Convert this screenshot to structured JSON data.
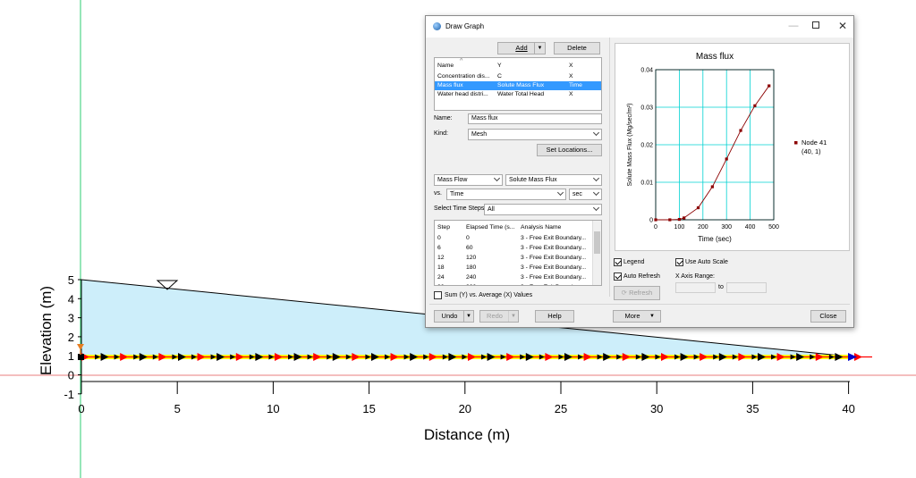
{
  "canvas": {
    "y_axis_label": "Elevation (m)",
    "x_axis_label": "Distance (m)",
    "y_ticks": [
      "5",
      "4",
      "3",
      "2",
      "1",
      "0",
      "-1"
    ],
    "x_ticks": [
      "0",
      "5",
      "10",
      "15",
      "20",
      "25",
      "30",
      "35",
      "40"
    ],
    "water_color": "#cdeefa",
    "flow_colors": [
      "#ff0000",
      "#000000",
      "#0000cc",
      "#ffff00"
    ]
  },
  "dialog": {
    "title": "Draw Graph",
    "add_label": "Add",
    "delete_label": "Delete",
    "graph_list": {
      "headers": [
        "Name",
        "Y",
        "X"
      ],
      "rows": [
        {
          "name": "Concentration dis...",
          "y": "C",
          "x": "X",
          "selected": false
        },
        {
          "name": "Mass flux",
          "y": "Solute Mass Flux",
          "x": "Time",
          "selected": true
        },
        {
          "name": "Water head distri...",
          "y": "Water Total Head",
          "x": "X",
          "selected": false
        }
      ]
    },
    "name_label": "Name:",
    "name_value": "Mass flux",
    "kind_label": "Kind:",
    "kind_value": "Mesh",
    "set_locations_label": "Set Locations...",
    "category_value": "Mass Flow",
    "quantity_value": "Solute Mass Flux",
    "vs_label": "vs.",
    "vs_value": "Time",
    "unit_value": "sec",
    "time_steps_label": "Select Time Steps:",
    "time_steps_value": "All",
    "steps_list": {
      "headers": [
        "Step",
        "Elapsed Time (s...",
        "Analysis Name"
      ],
      "rows": [
        {
          "step": "0",
          "time": "0",
          "name": "3 - Free Exit Boundary..."
        },
        {
          "step": "6",
          "time": "60",
          "name": "3 - Free Exit Boundary..."
        },
        {
          "step": "12",
          "time": "120",
          "name": "3 - Free Exit Boundary..."
        },
        {
          "step": "18",
          "time": "180",
          "name": "3 - Free Exit Boundary..."
        },
        {
          "step": "24",
          "time": "240",
          "name": "3 - Free Exit Boundary..."
        },
        {
          "step": "30",
          "time": "300",
          "name": "3 - Free Exit Boundary..."
        }
      ]
    },
    "sum_label": "Sum (Y) vs. Average (X) Values",
    "legend_label": "Legend",
    "use_auto_scale_label": "Use Auto Scale",
    "auto_refresh_label": "Auto Refresh",
    "x_axis_range_label": "X Axis Range:",
    "to_label": "to",
    "refresh_label": "Refresh",
    "undo_label": "Undo",
    "redo_label": "Redo",
    "help_label": "Help",
    "more_label": "More",
    "close_label": "Close",
    "legend_entry_1": "Node 41",
    "legend_entry_2": "(40, 1)"
  },
  "chart_data": {
    "type": "line",
    "title": "Mass flux",
    "xlabel": "Time (sec)",
    "ylabel": "Solute Mass Flux (Mg/sec/m²)",
    "xlim": [
      0,
      500
    ],
    "ylim": [
      0,
      0.04
    ],
    "x_ticks": [
      "0",
      "100",
      "200",
      "300",
      "400",
      "500"
    ],
    "y_ticks": [
      "0",
      "0.01",
      "0.02",
      "0.03",
      "0.04"
    ],
    "grid": true,
    "legend": "right",
    "series": [
      {
        "name": "Node 41",
        "color": "#8b0000",
        "x": [
          0,
          60,
          100,
          120,
          180,
          240,
          300,
          360,
          420,
          480
        ],
        "y": [
          0,
          0,
          0.0001,
          0.0005,
          0.0032,
          0.0088,
          0.0162,
          0.0238,
          0.0304,
          0.0357
        ]
      }
    ]
  }
}
